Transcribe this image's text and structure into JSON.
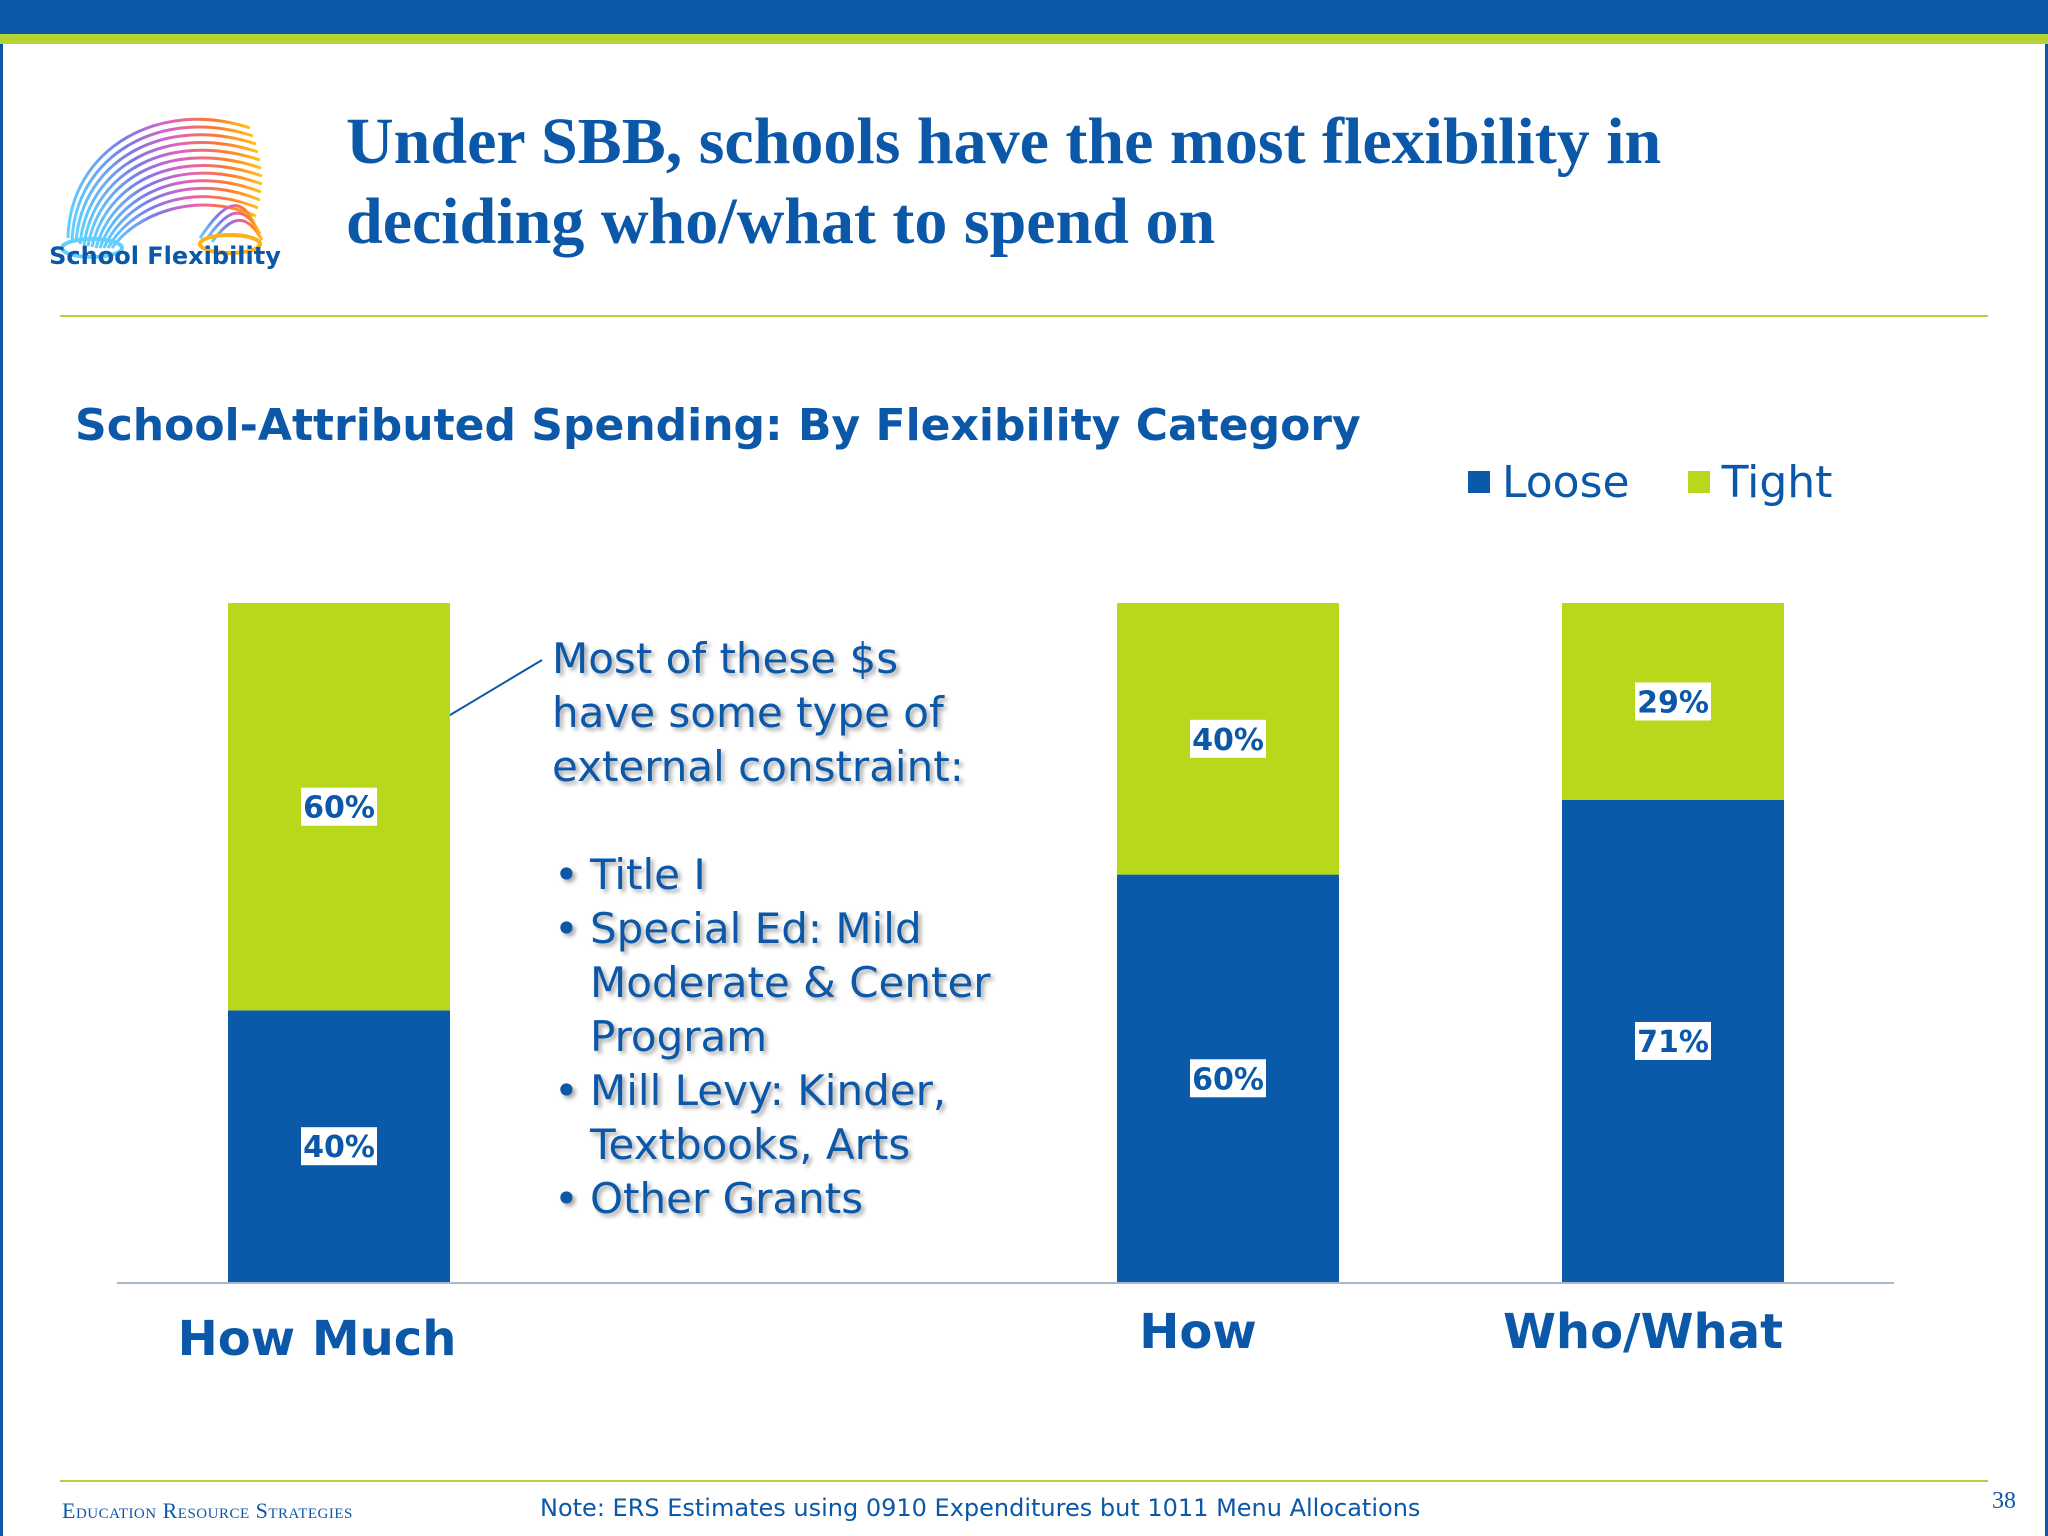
{
  "logo": {
    "label": "School Flexibility"
  },
  "slide": {
    "title_line1": "Under SBB, schools have the most flexibility in",
    "title_line2": "deciding who/what to spend on"
  },
  "chart_data": {
    "type": "bar",
    "stacked": true,
    "title": "School-Attributed Spending: By Flexibility Category",
    "categories": [
      "How Much",
      "How",
      "Who/What"
    ],
    "series": [
      {
        "name": "Loose",
        "color": "#0b5aa9",
        "values": [
          40,
          60,
          71
        ]
      },
      {
        "name": "Tight",
        "color": "#b7d81b",
        "values": [
          60,
          40,
          29
        ]
      }
    ],
    "value_suffix": "%",
    "ylim": [
      0,
      100
    ],
    "grid": false,
    "legend_position": "top-right"
  },
  "callout": {
    "heading": "Most of these $s have some type of external constraint:",
    "items": [
      "Title I",
      "Special Ed: Mild Moderate & Center Program",
      "Mill Levy: Kinder, Textbooks, Arts",
      "Other Grants"
    ]
  },
  "footer": {
    "org": "Education Resource Strategies",
    "note": "Note: ERS Estimates using 0910 Expenditures but 1011 Menu Allocations",
    "page_number": "38"
  }
}
